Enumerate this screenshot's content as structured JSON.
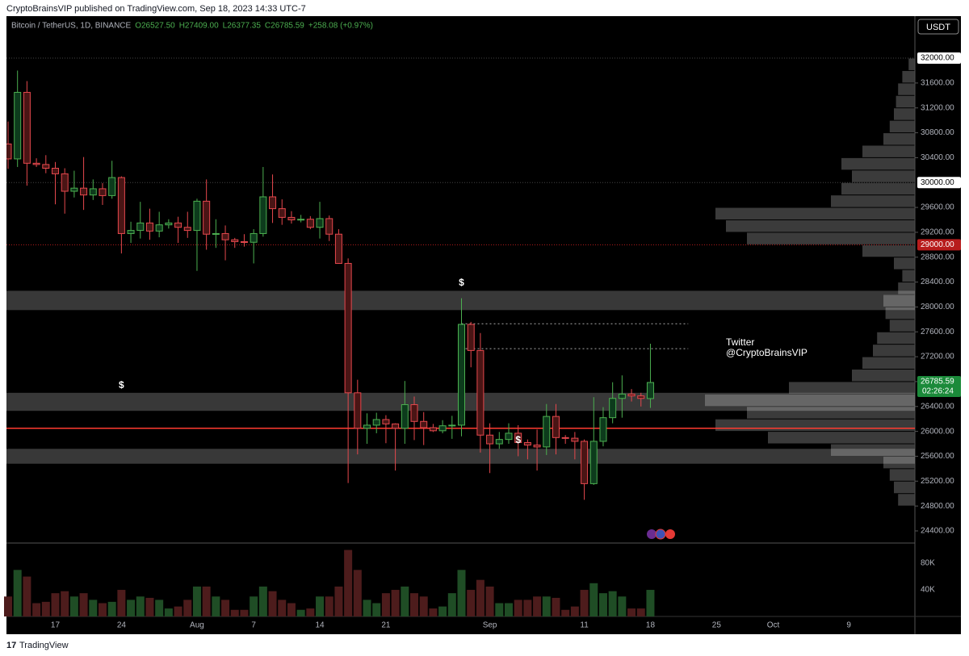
{
  "header": {
    "publisher": "CryptoBrainsVIP published on TradingView.com, Sep 18, 2023 14:33 UTC-7",
    "brand": "TradingView"
  },
  "chart_data": {
    "type": "candlestick",
    "legend": {
      "symbol": "Bitcoin / TetherUS, 1D, BINANCE",
      "open": "O26527.50",
      "high": "H27409.00",
      "low": "L26377.35",
      "close": "C26785.59",
      "change": "+258.08 (+0.97%)"
    },
    "currency": "USDT",
    "x": [
      "2023-07-12",
      "2023-07-13",
      "2023-07-14",
      "2023-07-15",
      "2023-07-16",
      "2023-07-17",
      "2023-07-18",
      "2023-07-19",
      "2023-07-20",
      "2023-07-21",
      "2023-07-22",
      "2023-07-23",
      "2023-07-24",
      "2023-07-25",
      "2023-07-26",
      "2023-07-27",
      "2023-07-28",
      "2023-07-29",
      "2023-07-30",
      "2023-07-31",
      "2023-08-01",
      "2023-08-02",
      "2023-08-03",
      "2023-08-04",
      "2023-08-05",
      "2023-08-06",
      "2023-08-07",
      "2023-08-08",
      "2023-08-09",
      "2023-08-10",
      "2023-08-11",
      "2023-08-12",
      "2023-08-13",
      "2023-08-14",
      "2023-08-15",
      "2023-08-16",
      "2023-08-17",
      "2023-08-18",
      "2023-08-19",
      "2023-08-20",
      "2023-08-21",
      "2023-08-22",
      "2023-08-23",
      "2023-08-24",
      "2023-08-25",
      "2023-08-26",
      "2023-08-27",
      "2023-08-28",
      "2023-08-29",
      "2023-08-30",
      "2023-08-31",
      "2023-09-01",
      "2023-09-02",
      "2023-09-03",
      "2023-09-04",
      "2023-09-05",
      "2023-09-06",
      "2023-09-07",
      "2023-09-08",
      "2023-09-09",
      "2023-09-10",
      "2023-09-11",
      "2023-09-12",
      "2023-09-13",
      "2023-09-14",
      "2023-09-15",
      "2023-09-16",
      "2023-09-17",
      "2023-09-18"
    ],
    "open": [
      30620,
      30380,
      31450,
      30310,
      30290,
      30230,
      30140,
      29860,
      29910,
      29800,
      29900,
      29790,
      30080,
      29180,
      29230,
      29350,
      29220,
      29320,
      29350,
      29280,
      29230,
      29700,
      29170,
      29180,
      29080,
      29050,
      29040,
      29180,
      29770,
      29580,
      29440,
      29400,
      29410,
      29280,
      29420,
      29170,
      28700,
      26620,
      26050,
      26100,
      26190,
      26120,
      26050,
      26430,
      26160,
      26060,
      26010,
      26090,
      26100,
      27720,
      27300,
      25940,
      25800,
      25870,
      25970,
      25820,
      25780,
      25750,
      26240,
      25900,
      25890,
      25840,
      25160,
      25840,
      26220,
      26530,
      26600,
      26570,
      26527.5
    ],
    "high": [
      30980,
      31800,
      31630,
      30390,
      30440,
      30330,
      30230,
      30190,
      30410,
      30050,
      29990,
      30350,
      30100,
      29370,
      29690,
      29580,
      29530,
      29410,
      29450,
      29530,
      29740,
      30050,
      29410,
      29310,
      29110,
      29170,
      29250,
      30250,
      30130,
      29730,
      29540,
      29480,
      29460,
      29690,
      29470,
      29250,
      28780,
      26830,
      26290,
      26300,
      26260,
      26130,
      26810,
      26560,
      26310,
      26120,
      26180,
      26250,
      28140,
      27760,
      27580,
      26130,
      25990,
      26130,
      26100,
      25870,
      26030,
      26440,
      26440,
      25940,
      25990,
      25870,
      26550,
      26390,
      26790,
      26900,
      26680,
      26620,
      27409
    ],
    "low": [
      30220,
      30250,
      29950,
      30250,
      30150,
      29650,
      29500,
      29760,
      29560,
      29720,
      29640,
      29740,
      28860,
      29030,
      29100,
      29080,
      29120,
      29260,
      29030,
      29110,
      28580,
      28920,
      28950,
      28750,
      28950,
      28970,
      28700,
      29130,
      29350,
      29320,
      29340,
      29360,
      29250,
      29100,
      29060,
      28700,
      25170,
      25630,
      25800,
      25970,
      25810,
      25370,
      25800,
      25860,
      25780,
      25990,
      25970,
      25880,
      25920,
      27030,
      25660,
      25330,
      25720,
      25800,
      25600,
      25550,
      25370,
      25620,
      25630,
      25800,
      25550,
      24900,
      25140,
      25760,
      26130,
      26220,
      26480,
      26400,
      26377.35
    ],
    "close": [
      30380,
      31450,
      30310,
      30290,
      30230,
      30140,
      29860,
      29910,
      29800,
      29900,
      29790,
      30080,
      29180,
      29230,
      29350,
      29220,
      29320,
      29350,
      29280,
      29230,
      29700,
      29170,
      29180,
      29080,
      29050,
      29040,
      29180,
      29770,
      29580,
      29440,
      29400,
      29410,
      29280,
      29420,
      29170,
      28700,
      26620,
      26050,
      26100,
      26190,
      26120,
      26050,
      26430,
      26160,
      26060,
      26010,
      26090,
      26100,
      27720,
      27300,
      25940,
      25800,
      25870,
      25970,
      25820,
      25780,
      25750,
      26240,
      25900,
      25890,
      25840,
      25160,
      25840,
      26220,
      26530,
      26600,
      26570,
      26530,
      26785.59
    ],
    "up_color": "#4caf50",
    "down_color": "#e5484d",
    "xlim": [
      "2023-07-12",
      "2023-10-16"
    ],
    "xticks": [
      {
        "value": "2023-07-17",
        "label": "17"
      },
      {
        "value": "2023-07-24",
        "label": "24"
      },
      {
        "value": "2023-08-01",
        "label": "Aug"
      },
      {
        "value": "2023-08-07",
        "label": "7"
      },
      {
        "value": "2023-08-14",
        "label": "14"
      },
      {
        "value": "2023-08-21",
        "label": "21"
      },
      {
        "value": "2023-09-01",
        "label": "Sep"
      },
      {
        "value": "2023-09-11",
        "label": "11"
      },
      {
        "value": "2023-09-18",
        "label": "18"
      },
      {
        "value": "2023-09-25",
        "label": "25"
      },
      {
        "value": "2023-10-01",
        "label": "Oct"
      },
      {
        "value": "2023-10-09",
        "label": "9"
      }
    ],
    "ylim": [
      24218,
      32649
    ],
    "yticks": [
      {
        "value": 24400,
        "label": "24400.00"
      },
      {
        "value": 24800,
        "label": "24800.00"
      },
      {
        "value": 25200,
        "label": "25200.00"
      },
      {
        "value": 25600,
        "label": "25600.00"
      },
      {
        "value": 26000,
        "label": "26000.00"
      },
      {
        "value": 26400,
        "label": "26400.00"
      },
      {
        "value": 26800,
        "label": "26800.00"
      },
      {
        "value": 27200,
        "label": "27200.00"
      },
      {
        "value": 27600,
        "label": "27600.00"
      },
      {
        "value": 28000,
        "label": "28000.00"
      },
      {
        "value": 28400,
        "label": "28400.00"
      },
      {
        "value": 28800,
        "label": "28800.00"
      },
      {
        "value": 29200,
        "label": "29200.00"
      },
      {
        "value": 29600,
        "label": "29600.00"
      },
      {
        "value": 30400,
        "label": "30400.00"
      },
      {
        "value": 30800,
        "label": "30800.00"
      },
      {
        "value": 31200,
        "label": "31200.00"
      },
      {
        "value": 31600,
        "label": "31600.00"
      }
    ],
    "levels": [
      {
        "value": 32000,
        "label": "32000.00",
        "color": "#ffffff"
      },
      {
        "value": 30000,
        "label": "30000.00",
        "color": "#ffffff"
      },
      {
        "value": 29000,
        "label": "29000.00",
        "color": "#b71c1c"
      }
    ],
    "last_price": {
      "value": 26785.59,
      "label": "26785.59",
      "countdown": "02:26:24",
      "color": "#1b8a3a"
    },
    "zones": [
      [
        27950,
        28260
      ],
      [
        26330,
        26620
      ],
      [
        25480,
        25720
      ]
    ],
    "support_line": {
      "value": 26050,
      "color": "#ff3b30"
    },
    "dotted_lines": [
      {
        "value": 27730,
        "from": "2023-08-29",
        "to": "2023-09-22"
      },
      {
        "value": 27330,
        "from": "2023-08-29",
        "to": "2023-09-22"
      }
    ],
    "annotations": [
      {
        "text": "$",
        "x": "2023-08-29",
        "y": 28381
      },
      {
        "text": "$",
        "x": "2023-07-24",
        "y": 26734
      },
      {
        "text": "$",
        "x": "2023-09-04",
        "y": 25852
      },
      {
        "text": "Twitter",
        "x": "2023-09-26",
        "y": 27422
      },
      {
        "text": "@CryptoBrainsVIP",
        "x": "2023-09-26",
        "y": 27253
      }
    ],
    "volume": {
      "values": [
        30000,
        70000,
        60000,
        20000,
        22000,
        35000,
        38000,
        30000,
        35000,
        25000,
        20000,
        22000,
        40000,
        25000,
        30000,
        28000,
        25000,
        12000,
        15000,
        25000,
        45000,
        45000,
        30000,
        25000,
        10000,
        10000,
        30000,
        45000,
        38000,
        25000,
        20000,
        10000,
        12000,
        30000,
        30000,
        45000,
        100000,
        70000,
        25000,
        20000,
        35000,
        40000,
        45000,
        35000,
        30000,
        12000,
        15000,
        35000,
        70000,
        40000,
        55000,
        45000,
        20000,
        20000,
        25000,
        25000,
        30000,
        30000,
        28000,
        10000,
        15000,
        40000,
        50000,
        35000,
        38000,
        30000,
        12000,
        12000,
        40000
      ],
      "ylim": [
        0,
        108000
      ],
      "yticks": [
        {
          "value": 40000,
          "label": "40K"
        },
        {
          "value": 80000,
          "label": "80K"
        }
      ],
      "up_color": "#1f4d25",
      "down_color": "#4d1c1c"
    },
    "volume_profile": {
      "prices": [
        24800,
        25000,
        25200,
        25400,
        25600,
        25800,
        26000,
        26200,
        26400,
        26600,
        26800,
        27000,
        27200,
        27400,
        27600,
        27800,
        28000,
        28200,
        28400,
        28600,
        28800,
        29000,
        29200,
        29400,
        29600,
        29800,
        30000,
        30200,
        30400,
        30600,
        30800,
        31000,
        31200,
        31400,
        31600,
        31800
      ],
      "values": [
        8,
        10,
        12,
        15,
        40,
        70,
        95,
        80,
        100,
        60,
        30,
        25,
        20,
        18,
        12,
        14,
        15,
        8,
        6,
        10,
        25,
        80,
        90,
        95,
        40,
        35,
        30,
        35,
        25,
        15,
        12,
        10,
        9,
        8,
        6,
        3
      ],
      "color": "#4a4a4a"
    }
  }
}
